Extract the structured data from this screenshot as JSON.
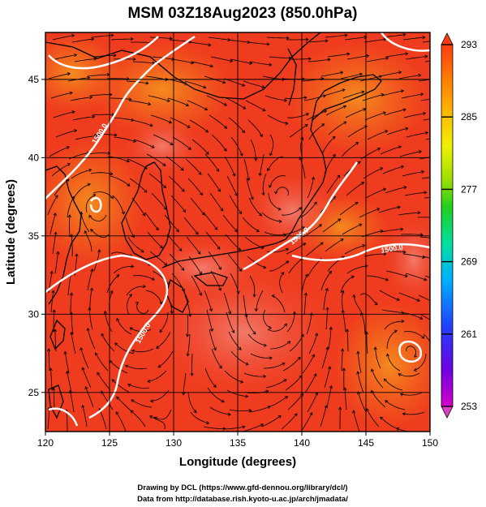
{
  "title": "MSM 03Z18Aug2023 (850.0hPa)",
  "xlabel": "Longitude (degrees)",
  "ylabel": "Latitude  (degrees)",
  "credits": [
    "Drawing by DCL (https://www.gfd-dennou.org/library/dcl/)",
    "Data from http://database.rish.kyoto-u.ac.jp/arch/jmadata/"
  ],
  "colors": {
    "field_warm": "#ef3b1e",
    "field_hot": "#f06a5c",
    "field_orange": "#f2741a",
    "contour": "#ffffff",
    "coastline": "#000000",
    "streamline": "#000000",
    "grid": "#000000"
  },
  "map": {
    "lon_range": [
      120,
      150
    ],
    "lat_range": [
      22.5,
      48
    ],
    "lon_ticks": [
      "120",
      "125",
      "130",
      "135",
      "140",
      "145",
      "150"
    ],
    "lat_ticks": [
      "25",
      "30",
      "35",
      "40",
      "45"
    ],
    "grid": true,
    "contour_labels": [
      "1500.0",
      "1500.0",
      "1500.0",
      "1500.0"
    ]
  },
  "colorbar": {
    "min": 253,
    "max": 293,
    "labels": [
      "293",
      "285",
      "277",
      "269",
      "261",
      "253"
    ],
    "stops": [
      "#d400c8",
      "#7000e0",
      "#2040ff",
      "#00b0ff",
      "#00e0a0",
      "#20d020",
      "#a0e000",
      "#f0f000",
      "#ffc000",
      "#ff8000",
      "#ff3c14"
    ]
  }
}
